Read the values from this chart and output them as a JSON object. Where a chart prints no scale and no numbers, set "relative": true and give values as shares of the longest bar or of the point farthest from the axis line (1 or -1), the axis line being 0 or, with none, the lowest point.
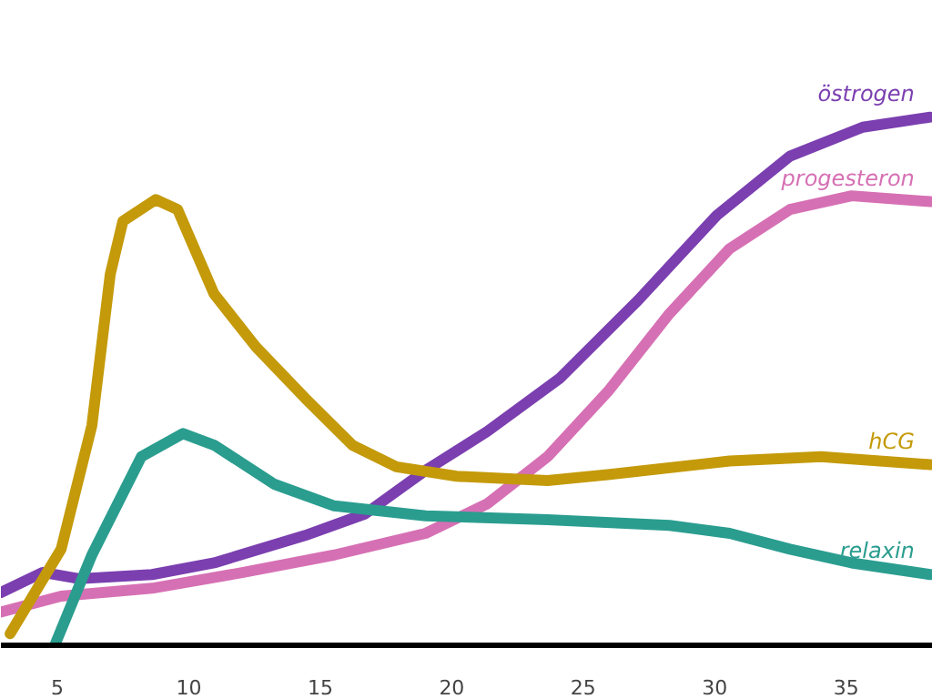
{
  "chart_data": {
    "type": "line",
    "relative": true,
    "xlim": [
      2.85,
      38.3
    ],
    "xticks": [
      5,
      10,
      15,
      20,
      25,
      30,
      35
    ],
    "marker": "none",
    "line_style": "solid",
    "series": [
      {
        "name": "östrogen",
        "color": "#7b3fb0",
        "x": [
          2.85,
          4.44,
          5.83,
          8.6,
          10.96,
          14.42,
          16.71,
          19.0,
          21.35,
          24.12,
          27.1,
          30.08,
          32.86,
          35.63,
          38.2
        ],
        "values": [
          0.1,
          0.138,
          0.126,
          0.134,
          0.156,
          0.208,
          0.249,
          0.331,
          0.405,
          0.506,
          0.654,
          0.814,
          0.926,
          0.981,
          1.0
        ]
      },
      {
        "name": "progesteron",
        "color": "#d670b4",
        "x": [
          2.85,
          5.14,
          8.6,
          12.07,
          15.53,
          19.0,
          21.35,
          23.64,
          25.93,
          28.28,
          30.57,
          32.86,
          35.21,
          38.2
        ],
        "values": [
          0.063,
          0.093,
          0.108,
          0.138,
          0.171,
          0.212,
          0.268,
          0.357,
          0.48,
          0.628,
          0.751,
          0.825,
          0.851,
          0.84
        ]
      },
      {
        "name": "hCG",
        "color": "#c49a0a",
        "x": [
          3.2,
          4.24,
          5.14,
          6.31,
          7.01,
          7.49,
          8.74,
          9.57,
          10.96,
          12.55,
          14.42,
          16.22,
          17.89,
          20.18,
          23.64,
          25.93,
          30.57,
          34.04,
          38.2
        ],
        "values": [
          0.022,
          0.108,
          0.182,
          0.416,
          0.703,
          0.803,
          0.844,
          0.825,
          0.665,
          0.565,
          0.468,
          0.379,
          0.338,
          0.32,
          0.312,
          0.323,
          0.349,
          0.357,
          0.342
        ]
      },
      {
        "name": "relaxin",
        "color": "#2a9d8f",
        "x": [
          4.93,
          6.31,
          8.19,
          9.78,
          10.96,
          13.25,
          15.53,
          19.0,
          23.64,
          28.28,
          30.57,
          32.86,
          35.21,
          38.2
        ],
        "values": [
          0.004,
          0.171,
          0.357,
          0.401,
          0.379,
          0.305,
          0.264,
          0.245,
          0.238,
          0.227,
          0.212,
          0.182,
          0.156,
          0.134
        ]
      }
    ]
  }
}
